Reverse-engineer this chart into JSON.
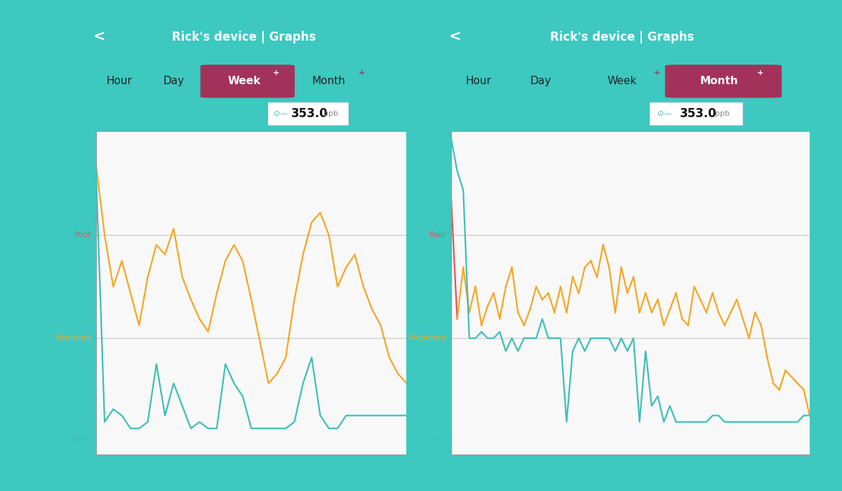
{
  "bg_outer_left": "#E8D44D",
  "bg_outer_right": "#29B8D8",
  "bg_outer_teal": "#3DC8C0",
  "panel_bg": "#F4F4F4",
  "header_color": "#3DBFB8",
  "header_text": "Rick's device | Graphs",
  "header_text_color": "#FFFFFF",
  "tab_active_color": "#A3325A",
  "tab_inactive_color": "#222222",
  "tooltip_icon_color": "#3DBFB8",
  "label_poor_color": "#E05555",
  "label_moderate_color": "#F5A623",
  "label_good_color": "#3DBFB8",
  "line_orange": "#F5A623",
  "line_teal": "#3DBFB8",
  "line_red": "#E05555",
  "grid_line_color": "#CCCCCC",
  "chart_bg": "#F8F8F8",
  "poor_level": 0.68,
  "moderate_level": 0.36,
  "week_orange": [
    0.9,
    0.68,
    0.52,
    0.6,
    0.5,
    0.4,
    0.55,
    0.65,
    0.62,
    0.7,
    0.55,
    0.48,
    0.42,
    0.38,
    0.5,
    0.6,
    0.65,
    0.6,
    0.48,
    0.35,
    0.22,
    0.25,
    0.3,
    0.48,
    0.62,
    0.72,
    0.75,
    0.68,
    0.52,
    0.58,
    0.62,
    0.52,
    0.45,
    0.4,
    0.3,
    0.25,
    0.22
  ],
  "week_teal": [
    0.88,
    0.1,
    0.14,
    0.12,
    0.08,
    0.08,
    0.1,
    0.28,
    0.12,
    0.22,
    0.15,
    0.08,
    0.1,
    0.08,
    0.08,
    0.28,
    0.22,
    0.18,
    0.08,
    0.08,
    0.08,
    0.08,
    0.08,
    0.1,
    0.22,
    0.3,
    0.12,
    0.08,
    0.08,
    0.12,
    0.12,
    0.12,
    0.12,
    0.12,
    0.12,
    0.12,
    0.12
  ],
  "month_orange": [
    0.8,
    0.42,
    0.58,
    0.44,
    0.52,
    0.4,
    0.46,
    0.5,
    0.42,
    0.52,
    0.58,
    0.44,
    0.4,
    0.45,
    0.52,
    0.48,
    0.5,
    0.44,
    0.52,
    0.44,
    0.55,
    0.5,
    0.58,
    0.6,
    0.55,
    0.65,
    0.58,
    0.44,
    0.58,
    0.5,
    0.55,
    0.44,
    0.5,
    0.44,
    0.48,
    0.4,
    0.45,
    0.5,
    0.42,
    0.4,
    0.52,
    0.48,
    0.44,
    0.5,
    0.44,
    0.4,
    0.44,
    0.48,
    0.42,
    0.36,
    0.44,
    0.4,
    0.3,
    0.22,
    0.2,
    0.26,
    0.24,
    0.22,
    0.2,
    0.12
  ],
  "month_teal": [
    0.98,
    0.88,
    0.82,
    0.36,
    0.36,
    0.38,
    0.36,
    0.36,
    0.38,
    0.32,
    0.36,
    0.32,
    0.36,
    0.36,
    0.36,
    0.42,
    0.36,
    0.36,
    0.36,
    0.1,
    0.32,
    0.36,
    0.32,
    0.36,
    0.36,
    0.36,
    0.36,
    0.32,
    0.36,
    0.32,
    0.36,
    0.1,
    0.32,
    0.15,
    0.18,
    0.1,
    0.15,
    0.1,
    0.1,
    0.1,
    0.1,
    0.1,
    0.1,
    0.12,
    0.12,
    0.1,
    0.1,
    0.1,
    0.1,
    0.1,
    0.1,
    0.1,
    0.1,
    0.1,
    0.1,
    0.1,
    0.1,
    0.1,
    0.12,
    0.12
  ]
}
